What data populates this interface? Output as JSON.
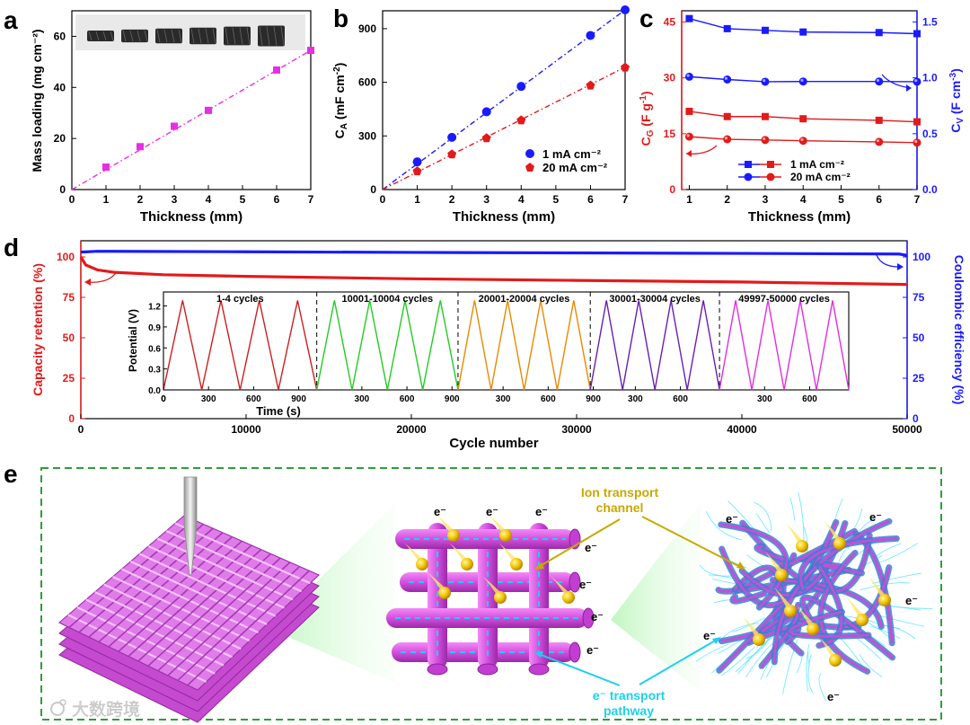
{
  "chart_data": [
    {
      "id": "a",
      "type": "scatter",
      "panel_label": "a",
      "xlabel": "Thickness (mm)",
      "ylabel": "Mass loading (mg cm⁻²)",
      "xlim": [
        0,
        7
      ],
      "ylim": [
        0,
        70
      ],
      "xticks": [
        0,
        1,
        2,
        3,
        4,
        5,
        6,
        7
      ],
      "yticks": [
        0,
        20,
        40,
        60
      ],
      "fit_line": "linear dash-dot",
      "inset": "photo of six 3D-printed lattices",
      "series": [
        {
          "name": "Mass loading",
          "color": "#e62ee6",
          "x": [
            1,
            2,
            3,
            4,
            6,
            7
          ],
          "y": [
            8.8,
            16.8,
            24.8,
            31.0,
            46.8,
            54.5
          ]
        }
      ]
    },
    {
      "id": "b",
      "type": "scatter",
      "panel_label": "b",
      "xlabel": "Thickness (mm)",
      "ylabel": "CA (mF cm⁻²)",
      "xlim": [
        0,
        7
      ],
      "ylim": [
        0,
        1000
      ],
      "xticks": [
        0,
        1,
        2,
        3,
        4,
        5,
        6,
        7
      ],
      "yticks": [
        0,
        300,
        600,
        900
      ],
      "legend_position": "bottom-right",
      "series": [
        {
          "name": "1 mA cm⁻²",
          "color": "#1a1aff",
          "x": [
            1,
            2,
            3,
            4,
            6,
            7
          ],
          "y": [
            155,
            292,
            435,
            577,
            862,
            1005
          ]
        },
        {
          "name": "20 mA cm⁻²",
          "color": "#e31a1a",
          "x": [
            1,
            2,
            3,
            4,
            6,
            7
          ],
          "y": [
            105,
            200,
            290,
            390,
            585,
            685
          ]
        }
      ]
    },
    {
      "id": "c",
      "type": "line",
      "panel_label": "c",
      "xlabel": "Thickness (mm)",
      "ylabel": "CG (F g⁻¹)",
      "ylabel_right": "CV (F cm⁻³)",
      "xlim": [
        0.8,
        7
      ],
      "ylim": [
        0,
        48
      ],
      "ylim_right": [
        0,
        1.6
      ],
      "xticks": [
        1,
        2,
        3,
        4,
        5,
        6,
        7
      ],
      "yticks": [
        0,
        15,
        30,
        45
      ],
      "yticks_right": [
        0.0,
        0.5,
        1.0,
        1.5
      ],
      "legend_position": "bottom-right",
      "legend_labels": [
        "1 mA cm⁻²",
        "20 mA cm⁻²"
      ],
      "series": [
        {
          "name": "CG 1 mA cm⁻²",
          "axis": "left",
          "color": "#e31a1a",
          "marker": "square",
          "x": [
            1,
            2,
            3,
            4,
            6,
            7
          ],
          "y": [
            21.0,
            19.6,
            19.6,
            19.0,
            18.6,
            18.2
          ]
        },
        {
          "name": "CG 20 mA cm⁻²",
          "axis": "left",
          "color": "#e31a1a",
          "marker": "circle",
          "x": [
            1,
            2,
            3,
            4,
            6,
            7
          ],
          "y": [
            14.2,
            13.5,
            13.3,
            13.1,
            12.8,
            12.6
          ]
        },
        {
          "name": "CV 1 mA cm⁻²",
          "axis": "right",
          "color": "#1a1aff",
          "marker": "square",
          "x": [
            1,
            2,
            3,
            4,
            6,
            7
          ],
          "y": [
            1.53,
            1.44,
            1.425,
            1.41,
            1.405,
            1.395
          ]
        },
        {
          "name": "CV 20 mA cm⁻²",
          "axis": "right",
          "color": "#1a1aff",
          "marker": "circle",
          "x": [
            1,
            2,
            3,
            4,
            6,
            7
          ],
          "y": [
            1.01,
            0.985,
            0.965,
            0.967,
            0.967,
            0.965
          ]
        }
      ]
    },
    {
      "id": "d",
      "type": "line",
      "panel_label": "d",
      "xlabel": "Cycle number",
      "ylabel": "Capacity retention (%)",
      "ylabel_right": "Coulombic efficiency (%)",
      "xlim": [
        0,
        50000
      ],
      "ylim": [
        0,
        110
      ],
      "ylim_right": [
        0,
        110
      ],
      "xticks": [
        0,
        10000,
        20000,
        30000,
        40000,
        50000
      ],
      "yticks": [
        0,
        25,
        50,
        75,
        100
      ],
      "yticks_right": [
        0,
        25,
        50,
        75,
        100
      ],
      "series": [
        {
          "name": "Capacity retention",
          "axis": "left",
          "color": "#e31a1a",
          "x": [
            0,
            300,
            1000,
            2000,
            5000,
            10000,
            20000,
            30000,
            40000,
            50000
          ],
          "y": [
            100,
            95,
            92,
            90.5,
            89,
            88,
            86.5,
            85.5,
            84.5,
            83
          ]
        },
        {
          "name": "Coulombic efficiency",
          "axis": "right",
          "color": "#1a1aff",
          "x": [
            0,
            1000,
            10000,
            20000,
            30000,
            40000,
            49500,
            50000
          ],
          "y": [
            103,
            103.5,
            103.2,
            102.8,
            102.5,
            102.2,
            101.8,
            101
          ]
        }
      ],
      "inset": {
        "type": "line",
        "xlabel": "Time (s)",
        "ylabel": "Potential (V)",
        "yticks": [
          0.0,
          0.3,
          0.6,
          0.9,
          1.2
        ],
        "ylim": [
          0,
          1.4
        ],
        "segments": [
          {
            "label": "1-4 cycles",
            "color": "#cc1f1f",
            "xticks": [
              0,
              300,
              600,
              900
            ],
            "span_s": 1020,
            "cycles": 4
          },
          {
            "label": "10001-10004 cycles",
            "color": "#22cc22",
            "xticks": [
              300,
              600,
              900
            ],
            "span_s": 940,
            "cycles": 4
          },
          {
            "label": "20001-20004 cycles",
            "color": "#e68a00",
            "xticks": [
              300,
              600,
              900
            ],
            "span_s": 880,
            "cycles": 4
          },
          {
            "label": "30001-30004 cycles",
            "color": "#6a1fb0",
            "xticks": [
              300,
              600
            ],
            "span_s": 860,
            "cycles": 4
          },
          {
            "label": "49997-50000 cycles",
            "color": "#e02ee0",
            "xticks": [
              300,
              600
            ],
            "span_s": 860,
            "cycles": 4
          }
        ],
        "first_xtick": "0",
        "first_tick_labels": [
          "0",
          "300",
          "600",
          "900",
          "300",
          "600",
          "900",
          "300",
          "600",
          "900",
          "300",
          "600",
          "300",
          "600"
        ]
      }
    }
  ],
  "panel_e": {
    "label": "e",
    "ion_label_line1": "Ion transport",
    "ion_label_line2": "channel",
    "electron_label_line1": "e⁻ transport",
    "electron_label_line2": "pathway",
    "electron_symbol": "e⁻",
    "watermark": "大数跨境"
  },
  "colors": {
    "red": "#e31a1a",
    "blue": "#1a1aff",
    "magenta": "#e62ee6",
    "lattice": "#d44fe0",
    "ion": "#c9a800",
    "cyan": "#1ad1f0",
    "green_frame": "#2e9e3a"
  }
}
